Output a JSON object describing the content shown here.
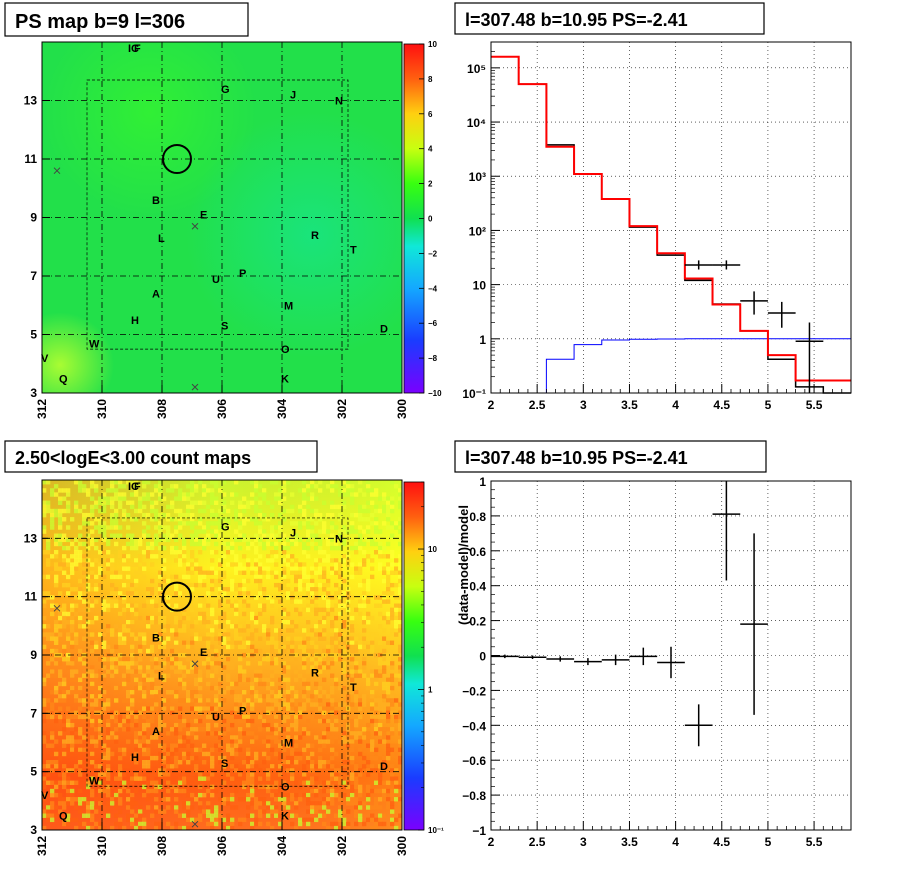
{
  "panels": {
    "tl": {
      "title": "PS map b=9 l=306",
      "x_ticks": [
        "312",
        "310",
        "308",
        "306",
        "304",
        "302",
        "300"
      ],
      "y_ticks": [
        "3",
        "5",
        "7",
        "9",
        "11",
        "13"
      ],
      "colorbar_ticks": [
        "10",
        "8",
        "6",
        "4",
        "2",
        "0",
        "−2",
        "−4",
        "−6",
        "−8",
        "−10"
      ],
      "base_color": "#22e04a",
      "labels": [
        "IC",
        "F",
        "G",
        "J",
        "N",
        "B",
        "E",
        "L",
        "R",
        "T",
        "A",
        "U",
        "P",
        "M",
        "H",
        "S",
        "D",
        "W",
        "O",
        "Q",
        "K",
        "V"
      ]
    },
    "bl": {
      "title": "2.50<logE<3.00 count maps",
      "x_ticks": [
        "312",
        "310",
        "308",
        "306",
        "304",
        "302",
        "300"
      ],
      "y_ticks": [
        "3",
        "5",
        "7",
        "9",
        "11",
        "13"
      ],
      "colorbar_ticks": [
        "10",
        "1",
        "10⁻¹"
      ],
      "labels": [
        "IC",
        "F",
        "G",
        "J",
        "N",
        "B",
        "E",
        "L",
        "R",
        "T",
        "A",
        "U",
        "P",
        "M",
        "H",
        "S",
        "D",
        "W",
        "O",
        "Q",
        "K",
        "V"
      ]
    },
    "tr": {
      "title": "l=307.48 b=10.95 PS=-2.41",
      "x_ticks": [
        "2",
        "2.5",
        "3",
        "3.5",
        "4",
        "4.5",
        "5",
        "5.5"
      ],
      "y_ticks": [
        "10⁻¹",
        "1",
        "10",
        "10²",
        "10³",
        "10⁴",
        "10⁵"
      ]
    },
    "br": {
      "title": "l=307.48 b=10.95 PS=-2.41",
      "ylabel": "(data-model)/model",
      "x_ticks": [
        "2",
        "2.5",
        "3",
        "3.5",
        "4",
        "4.5",
        "5",
        "5.5"
      ],
      "y_ticks": [
        "−1",
        "−0.8",
        "−0.6",
        "−0.4",
        "−0.2",
        "0",
        "0.2",
        "0.4",
        "0.6",
        "0.8",
        "1"
      ]
    }
  },
  "chart_data": [
    {
      "type": "heatmap",
      "title": "PS map b=9 l=306",
      "xlim": [
        312,
        300
      ],
      "ylim": [
        3,
        15
      ],
      "zlim": [
        -10,
        10
      ],
      "circle": {
        "l": 307.5,
        "b": 11.0
      },
      "source_labels": [
        {
          "text": "IC",
          "l": 309.0,
          "b": 14.8
        },
        {
          "text": "F",
          "l": 308.8,
          "b": 14.8
        },
        {
          "text": "G",
          "l": 305.9,
          "b": 13.4
        },
        {
          "text": "J",
          "l": 303.6,
          "b": 13.2
        },
        {
          "text": "N",
          "l": 302.1,
          "b": 13.0
        },
        {
          "text": "B",
          "l": 308.2,
          "b": 9.6
        },
        {
          "text": "E",
          "l": 306.6,
          "b": 9.1
        },
        {
          "text": "L",
          "l": 308.0,
          "b": 8.3
        },
        {
          "text": "R",
          "l": 302.9,
          "b": 8.4
        },
        {
          "text": "T",
          "l": 301.6,
          "b": 7.9
        },
        {
          "text": "A",
          "l": 308.2,
          "b": 6.4
        },
        {
          "text": "U",
          "l": 306.2,
          "b": 6.9
        },
        {
          "text": "P",
          "l": 305.3,
          "b": 7.1
        },
        {
          "text": "M",
          "l": 303.8,
          "b": 6.0
        },
        {
          "text": "H",
          "l": 308.9,
          "b": 5.5
        },
        {
          "text": "S",
          "l": 305.9,
          "b": 5.3
        },
        {
          "text": "D",
          "l": 300.6,
          "b": 5.2
        },
        {
          "text": "W",
          "l": 310.3,
          "b": 4.7
        },
        {
          "text": "O",
          "l": 303.9,
          "b": 4.5
        },
        {
          "text": "Q",
          "l": 311.3,
          "b": 3.5
        },
        {
          "text": "K",
          "l": 303.9,
          "b": 3.5
        },
        {
          "text": "V",
          "l": 311.9,
          "b": 4.2
        }
      ],
      "crosses": [
        {
          "l": 311.5,
          "b": 10.6
        },
        {
          "l": 306.9,
          "b": 8.7
        },
        {
          "l": 306.9,
          "b": 3.2
        }
      ]
    },
    {
      "type": "heatmap",
      "title": "2.50<logE<3.00 count maps",
      "xlim": [
        312,
        300
      ],
      "ylim": [
        3,
        15
      ],
      "zscale": "log",
      "zlim": [
        0.1,
        30
      ],
      "circle": {
        "l": 307.5,
        "b": 11.0
      }
    },
    {
      "type": "line",
      "title": "l=307.48 b=10.95 PS=-2.41",
      "xlim": [
        2,
        5.9
      ],
      "yscale": "log",
      "ylim": [
        0.1,
        300000
      ],
      "series": [
        {
          "color": "#000000",
          "bin_edges": [
            2.0,
            2.3,
            2.6,
            2.9,
            3.2,
            3.5,
            3.8,
            4.1,
            4.4,
            4.7,
            5.0,
            5.3,
            5.6,
            5.9
          ],
          "values": [
            160000,
            50000,
            3800,
            1100,
            380,
            115,
            35,
            12,
            4.4,
            1.4,
            0.42,
            0.13,
            0.04
          ]
        },
        {
          "color": "#ff0000",
          "bin_edges": [
            2.0,
            2.3,
            2.6,
            2.9,
            3.2,
            3.5,
            3.8,
            4.1,
            4.4,
            4.7,
            5.0,
            5.3,
            5.6,
            5.9
          ],
          "values": [
            160000,
            50000,
            3500,
            1100,
            380,
            120,
            38,
            13,
            4.3,
            1.4,
            0.5,
            0.17,
            0.17
          ]
        },
        {
          "color": "#0000ff",
          "bin_edges": [
            2.0,
            2.3,
            2.6,
            2.9,
            3.2,
            3.5,
            3.8,
            4.1,
            4.4,
            4.7,
            5.0,
            5.3,
            5.6,
            5.9
          ],
          "values": [
            0.1,
            0.1,
            0.42,
            0.78,
            0.95,
            0.98,
            0.99,
            1.0,
            1.0,
            1.0,
            1.0,
            1.0,
            1.0
          ]
        }
      ],
      "data_points": [
        {
          "x": 4.25,
          "y": 23,
          "xerr": 0.15,
          "ylo": 19,
          "yhi": 28
        },
        {
          "x": 4.55,
          "y": 23,
          "xerr": 0.15,
          "ylo": 19,
          "yhi": 28
        },
        {
          "x": 4.85,
          "y": 5,
          "xerr": 0.15,
          "ylo": 2.8,
          "yhi": 7.5
        },
        {
          "x": 5.15,
          "y": 3,
          "xerr": 0.15,
          "ylo": 1.6,
          "yhi": 4.8
        },
        {
          "x": 5.45,
          "y": 0.9,
          "xerr": 0.15,
          "ylo": 0.1,
          "yhi": 2.0
        }
      ]
    },
    {
      "type": "scatter",
      "title": "l=307.48 b=10.95 PS=-2.41",
      "ylabel": "(data-model)/model",
      "xlim": [
        2,
        5.9
      ],
      "ylim": [
        -1,
        1
      ],
      "points": [
        {
          "x": 2.15,
          "y": -0.005,
          "xerr": 0.15,
          "yerr": 0.01
        },
        {
          "x": 2.45,
          "y": -0.01,
          "xerr": 0.15,
          "yerr": 0.01
        },
        {
          "x": 2.75,
          "y": -0.02,
          "xerr": 0.15,
          "yerr": 0.015
        },
        {
          "x": 3.05,
          "y": -0.035,
          "xerr": 0.15,
          "yerr": 0.02
        },
        {
          "x": 3.35,
          "y": -0.025,
          "xerr": 0.15,
          "yerr": 0.03
        },
        {
          "x": 3.65,
          "y": -0.005,
          "xerr": 0.15,
          "yerr": 0.05
        },
        {
          "x": 3.95,
          "y": -0.04,
          "xerr": 0.15,
          "yerr": 0.09
        },
        {
          "x": 4.25,
          "y": -0.4,
          "xerr": 0.15,
          "yerr": 0.12
        },
        {
          "x": 4.55,
          "y": 0.81,
          "xerr": 0.15,
          "yerr": 0.38
        },
        {
          "x": 4.85,
          "y": 0.18,
          "xerr": 0.15,
          "yerr": 0.52
        }
      ]
    }
  ]
}
